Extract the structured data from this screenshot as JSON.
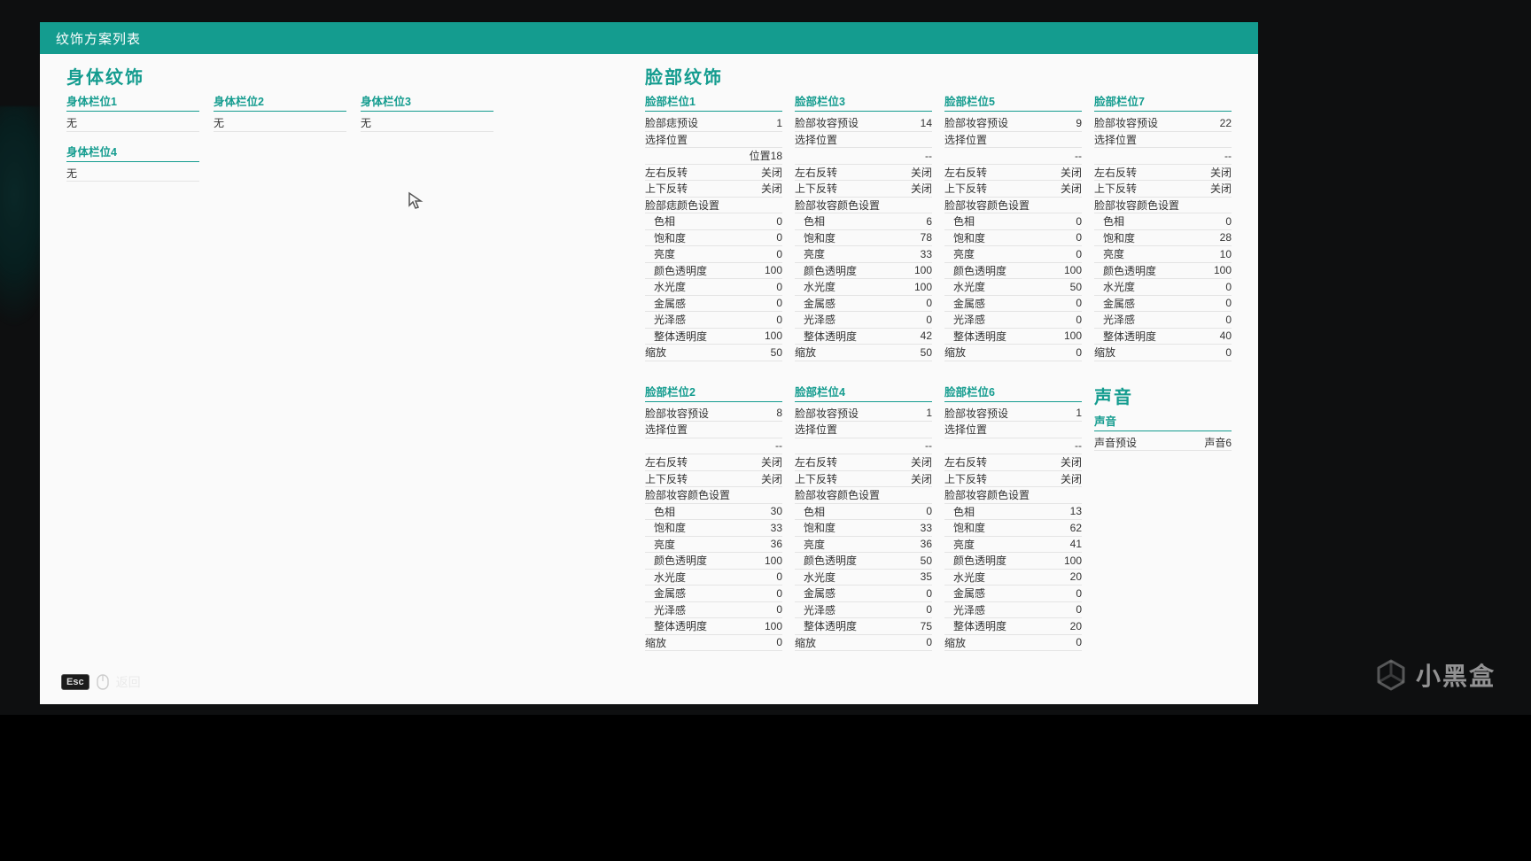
{
  "colors": {
    "teal": "#149c8f",
    "panel_bg": "#fafafa",
    "text": "#333333",
    "divider": "#e4e4e4",
    "backdrop": "#0e0f10"
  },
  "header": {
    "title": "纹饰方案列表"
  },
  "body_section": {
    "title": "身体纹饰",
    "slots": [
      {
        "name": "身体栏位1",
        "value": "无"
      },
      {
        "name": "身体栏位2",
        "value": "无"
      },
      {
        "name": "身体栏位3",
        "value": "无"
      },
      {
        "name": "身体栏位4",
        "value": "无"
      }
    ]
  },
  "face_section": {
    "title": "脸部纹饰",
    "slots": [
      {
        "name": "脸部栏位1",
        "rows": [
          {
            "label": "脸部痣预设",
            "value": "1"
          },
          {
            "label": "选择位置",
            "value": ""
          },
          {
            "label": "",
            "value": "位置18"
          },
          {
            "label": "左右反转",
            "value": "关闭"
          },
          {
            "label": "上下反转",
            "value": "关闭"
          },
          {
            "label": "脸部痣颜色设置",
            "value": ""
          },
          {
            "label": "色相",
            "value": "0",
            "sub": true
          },
          {
            "label": "饱和度",
            "value": "0",
            "sub": true
          },
          {
            "label": "亮度",
            "value": "0",
            "sub": true
          },
          {
            "label": "颜色透明度",
            "value": "100",
            "sub": true
          },
          {
            "label": "水光度",
            "value": "0",
            "sub": true
          },
          {
            "label": "金属感",
            "value": "0",
            "sub": true
          },
          {
            "label": "光泽感",
            "value": "0",
            "sub": true
          },
          {
            "label": "整体透明度",
            "value": "100",
            "sub": true
          },
          {
            "label": "缩放",
            "value": "50"
          }
        ]
      },
      {
        "name": "脸部栏位3",
        "rows": [
          {
            "label": "脸部妆容预设",
            "value": "14"
          },
          {
            "label": "选择位置",
            "value": ""
          },
          {
            "label": "",
            "value": "--"
          },
          {
            "label": "左右反转",
            "value": "关闭"
          },
          {
            "label": "上下反转",
            "value": "关闭"
          },
          {
            "label": "脸部妆容颜色设置",
            "value": ""
          },
          {
            "label": "色相",
            "value": "6",
            "sub": true
          },
          {
            "label": "饱和度",
            "value": "78",
            "sub": true
          },
          {
            "label": "亮度",
            "value": "33",
            "sub": true
          },
          {
            "label": "颜色透明度",
            "value": "100",
            "sub": true
          },
          {
            "label": "水光度",
            "value": "100",
            "sub": true
          },
          {
            "label": "金属感",
            "value": "0",
            "sub": true
          },
          {
            "label": "光泽感",
            "value": "0",
            "sub": true
          },
          {
            "label": "整体透明度",
            "value": "42",
            "sub": true
          },
          {
            "label": "缩放",
            "value": "50"
          }
        ]
      },
      {
        "name": "脸部栏位5",
        "rows": [
          {
            "label": "脸部妆容预设",
            "value": "9"
          },
          {
            "label": "选择位置",
            "value": ""
          },
          {
            "label": "",
            "value": "--"
          },
          {
            "label": "左右反转",
            "value": "关闭"
          },
          {
            "label": "上下反转",
            "value": "关闭"
          },
          {
            "label": "脸部妆容颜色设置",
            "value": ""
          },
          {
            "label": "色相",
            "value": "0",
            "sub": true
          },
          {
            "label": "饱和度",
            "value": "0",
            "sub": true
          },
          {
            "label": "亮度",
            "value": "0",
            "sub": true
          },
          {
            "label": "颜色透明度",
            "value": "100",
            "sub": true
          },
          {
            "label": "水光度",
            "value": "50",
            "sub": true
          },
          {
            "label": "金属感",
            "value": "0",
            "sub": true
          },
          {
            "label": "光泽感",
            "value": "0",
            "sub": true
          },
          {
            "label": "整体透明度",
            "value": "100",
            "sub": true
          },
          {
            "label": "缩放",
            "value": "0"
          }
        ]
      },
      {
        "name": "脸部栏位7",
        "rows": [
          {
            "label": "脸部妆容预设",
            "value": "22"
          },
          {
            "label": "选择位置",
            "value": ""
          },
          {
            "label": "",
            "value": "--"
          },
          {
            "label": "左右反转",
            "value": "关闭"
          },
          {
            "label": "上下反转",
            "value": "关闭"
          },
          {
            "label": "脸部妆容颜色设置",
            "value": ""
          },
          {
            "label": "色相",
            "value": "0",
            "sub": true
          },
          {
            "label": "饱和度",
            "value": "28",
            "sub": true
          },
          {
            "label": "亮度",
            "value": "10",
            "sub": true
          },
          {
            "label": "颜色透明度",
            "value": "100",
            "sub": true
          },
          {
            "label": "水光度",
            "value": "0",
            "sub": true
          },
          {
            "label": "金属感",
            "value": "0",
            "sub": true
          },
          {
            "label": "光泽感",
            "value": "0",
            "sub": true
          },
          {
            "label": "整体透明度",
            "value": "40",
            "sub": true
          },
          {
            "label": "缩放",
            "value": "0"
          }
        ]
      },
      {
        "name": "脸部栏位2",
        "rows": [
          {
            "label": "脸部妆容预设",
            "value": "8"
          },
          {
            "label": "选择位置",
            "value": ""
          },
          {
            "label": "",
            "value": "--"
          },
          {
            "label": "左右反转",
            "value": "关闭"
          },
          {
            "label": "上下反转",
            "value": "关闭"
          },
          {
            "label": "脸部妆容颜色设置",
            "value": ""
          },
          {
            "label": "色相",
            "value": "30",
            "sub": true
          },
          {
            "label": "饱和度",
            "value": "33",
            "sub": true
          },
          {
            "label": "亮度",
            "value": "36",
            "sub": true
          },
          {
            "label": "颜色透明度",
            "value": "100",
            "sub": true
          },
          {
            "label": "水光度",
            "value": "0",
            "sub": true
          },
          {
            "label": "金属感",
            "value": "0",
            "sub": true
          },
          {
            "label": "光泽感",
            "value": "0",
            "sub": true
          },
          {
            "label": "整体透明度",
            "value": "100",
            "sub": true
          },
          {
            "label": "缩放",
            "value": "0"
          }
        ]
      },
      {
        "name": "脸部栏位4",
        "rows": [
          {
            "label": "脸部妆容预设",
            "value": "1"
          },
          {
            "label": "选择位置",
            "value": ""
          },
          {
            "label": "",
            "value": "--"
          },
          {
            "label": "左右反转",
            "value": "关闭"
          },
          {
            "label": "上下反转",
            "value": "关闭"
          },
          {
            "label": "脸部妆容颜色设置",
            "value": ""
          },
          {
            "label": "色相",
            "value": "0",
            "sub": true
          },
          {
            "label": "饱和度",
            "value": "33",
            "sub": true
          },
          {
            "label": "亮度",
            "value": "36",
            "sub": true
          },
          {
            "label": "颜色透明度",
            "value": "50",
            "sub": true
          },
          {
            "label": "水光度",
            "value": "35",
            "sub": true
          },
          {
            "label": "金属感",
            "value": "0",
            "sub": true
          },
          {
            "label": "光泽感",
            "value": "0",
            "sub": true
          },
          {
            "label": "整体透明度",
            "value": "75",
            "sub": true
          },
          {
            "label": "缩放",
            "value": "0"
          }
        ]
      },
      {
        "name": "脸部栏位6",
        "rows": [
          {
            "label": "脸部妆容预设",
            "value": "1"
          },
          {
            "label": "选择位置",
            "value": ""
          },
          {
            "label": "",
            "value": "--"
          },
          {
            "label": "左右反转",
            "value": "关闭"
          },
          {
            "label": "上下反转",
            "value": "关闭"
          },
          {
            "label": "脸部妆容颜色设置",
            "value": ""
          },
          {
            "label": "色相",
            "value": "13",
            "sub": true
          },
          {
            "label": "饱和度",
            "value": "62",
            "sub": true
          },
          {
            "label": "亮度",
            "value": "41",
            "sub": true
          },
          {
            "label": "颜色透明度",
            "value": "100",
            "sub": true
          },
          {
            "label": "水光度",
            "value": "20",
            "sub": true
          },
          {
            "label": "金属感",
            "value": "0",
            "sub": true
          },
          {
            "label": "光泽感",
            "value": "0",
            "sub": true
          },
          {
            "label": "整体透明度",
            "value": "20",
            "sub": true
          },
          {
            "label": "缩放",
            "value": "0"
          }
        ]
      }
    ]
  },
  "sound_section": {
    "title": "声音",
    "subheader": "声音",
    "row": {
      "label": "声音预设",
      "value": "声音6"
    }
  },
  "footer": {
    "esc_label": "Esc",
    "back_label": "返回"
  },
  "watermark": {
    "text": "小黑盒"
  }
}
